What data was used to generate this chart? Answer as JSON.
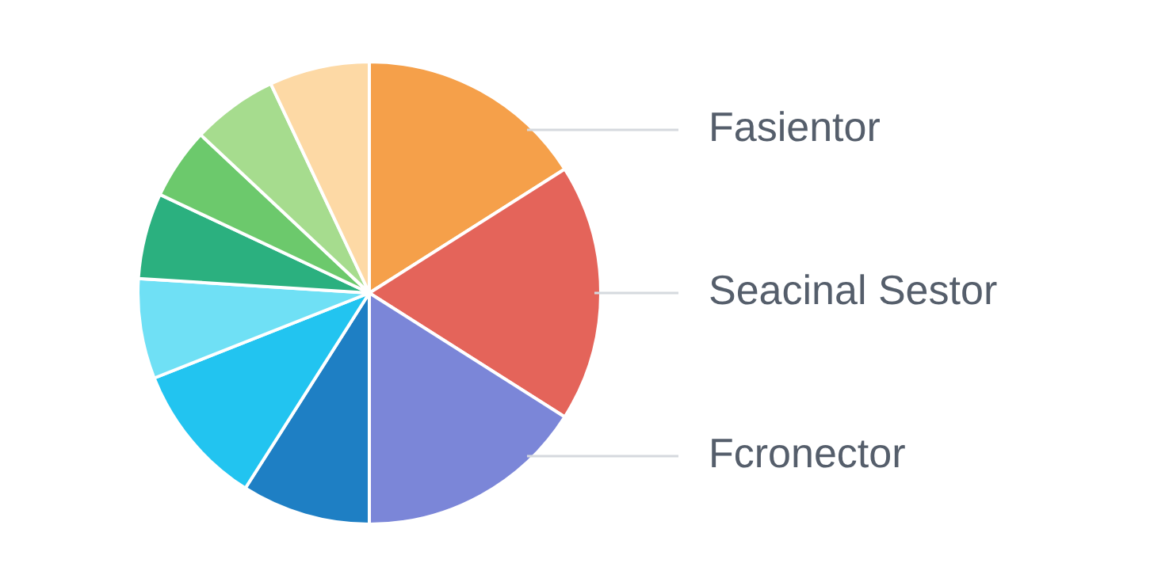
{
  "chart_data": {
    "type": "pie",
    "categories": [
      "Fasientor",
      "Seacinal Sestor",
      "Fcronector",
      null,
      null,
      null,
      null,
      null,
      null,
      null
    ],
    "values": [
      16,
      18,
      16,
      9,
      10,
      7,
      6,
      5,
      6,
      7
    ],
    "colors": [
      "#f5a04a",
      "#e4645a",
      "#7b86d8",
      "#1e7fc4",
      "#22c4f0",
      "#6fe0f5",
      "#2bb07f",
      "#6cc96c",
      "#a6dc8e",
      "#fdd9a5"
    ],
    "legend": false
  }
}
